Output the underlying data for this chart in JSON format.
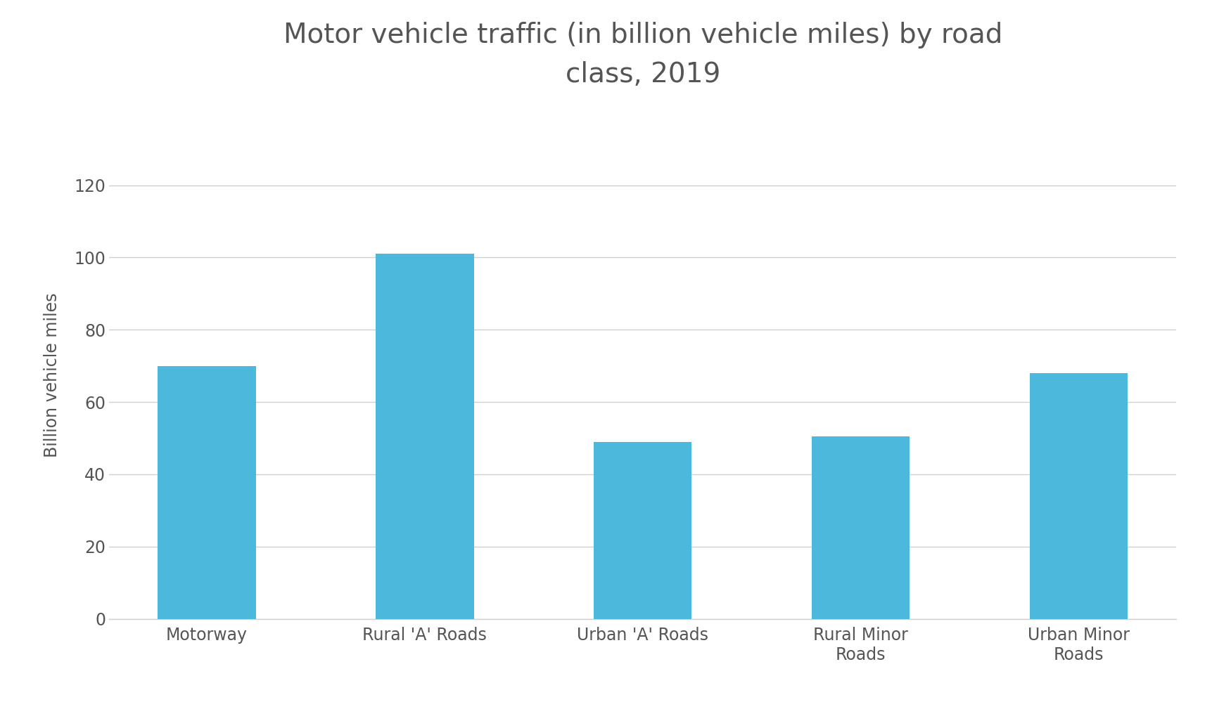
{
  "title": "Motor vehicle traffic (in billion vehicle miles) by road\nclass, 2019",
  "categories": [
    "Motorway",
    "Rural 'A' Roads",
    "Urban 'A' Roads",
    "Rural Minor\nRoads",
    "Urban Minor\nRoads"
  ],
  "values": [
    70,
    101,
    49,
    50.5,
    68
  ],
  "bar_color": "#4CB8DC",
  "ylabel": "Billion vehicle miles",
  "ylim": [
    0,
    135
  ],
  "yticks": [
    0,
    20,
    40,
    60,
    80,
    100,
    120
  ],
  "title_fontsize": 28,
  "label_fontsize": 17,
  "tick_fontsize": 17,
  "background_color": "#ffffff",
  "grid_color": "#d0d0d0",
  "bar_width": 0.45,
  "title_color": "#555555",
  "tick_color": "#555555"
}
